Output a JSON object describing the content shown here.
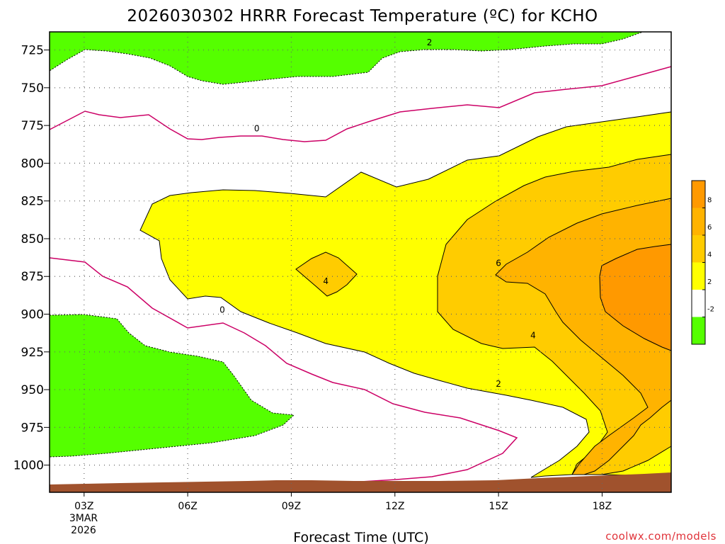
{
  "chart_data": {
    "type": "contour",
    "title": "2026030302 HRRR Forecast Temperature (ºC) for KCHO",
    "xlabel": "Forecast Time (UTC)",
    "credit": "coolwx.com/models",
    "x_ticks": [
      {
        "label": "03Z",
        "hour": 3
      },
      {
        "label": "06Z",
        "hour": 6
      },
      {
        "label": "09Z",
        "hour": 9
      },
      {
        "label": "12Z",
        "hour": 12
      },
      {
        "label": "15Z",
        "hour": 15
      },
      {
        "label": "18Z",
        "hour": 18
      }
    ],
    "x_date_lines": [
      "3MAR",
      "2026"
    ],
    "xlim": [
      2,
      20
    ],
    "y_ticks": [
      725,
      750,
      775,
      800,
      825,
      850,
      875,
      900,
      925,
      950,
      975,
      1000
    ],
    "ylim": [
      713,
      1018
    ],
    "legend": {
      "placement": "right",
      "labels": [
        "8",
        "6",
        "4",
        "2",
        "-2"
      ],
      "bands": [
        {
          "range": "> 8",
          "color": "#ff9900"
        },
        {
          "range": "6 to 8",
          "color": "#ffb300"
        },
        {
          "range": "4 to 6",
          "color": "#ffcc00"
        },
        {
          "range": "2 to 4",
          "color": "#ffff00"
        },
        {
          "range": "-2 to 2",
          "color": "#ffffff"
        },
        {
          "range": "< -2",
          "color": "#55ff00"
        }
      ]
    },
    "contour_labels": [
      {
        "text": "2",
        "hour": 13,
        "pressure": 722
      },
      {
        "text": "0",
        "hour": 8,
        "pressure": 779
      },
      {
        "text": "4",
        "hour": 10,
        "pressure": 880
      },
      {
        "text": "0",
        "hour": 7,
        "pressure": 899
      },
      {
        "text": "6",
        "hour": 15,
        "pressure": 868
      },
      {
        "text": "4",
        "hour": 16,
        "pressure": 916
      },
      {
        "text": "2",
        "hour": 15,
        "pressure": 948
      }
    ],
    "colors": {
      "below_minus2": "#55ff00",
      "two_to_four": "#ffff00",
      "four_to_six": "#ffcc00",
      "six_to_eight": "#ffb300",
      "above_eight": "#ff9900",
      "zero_line": "#cc0066",
      "terrain": "#a0522d"
    }
  }
}
